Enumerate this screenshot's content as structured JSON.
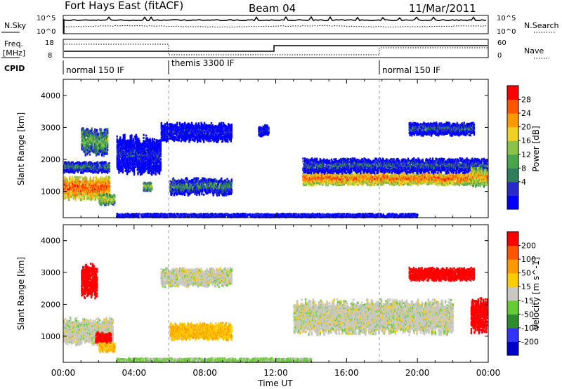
{
  "header": {
    "station": "Fort Hays East (fitACF)",
    "beam": "Beam 04",
    "date": "11/Mar/2011"
  },
  "panels": {
    "nsky": {
      "left_label": "N.Sky",
      "right_label": "N.Search",
      "left_ticks": [
        "10^5",
        "10^0"
      ],
      "right_ticks": [
        "10^5",
        "10^0"
      ]
    },
    "freq": {
      "left_label_1": "Freq.",
      "left_label_2": "[MHz]",
      "right_label": "Nave",
      "left_ticks": [
        "18",
        "8"
      ],
      "right_ticks": [
        "60",
        "0"
      ]
    },
    "cpid": {
      "label": "CPID",
      "segments": [
        "normal 150 IF",
        "themis 3300 IF",
        "normal 150 IF"
      ]
    }
  },
  "x_axis": {
    "label": "Time UT",
    "ticks": [
      "00:00",
      "04:00",
      "08:00",
      "12:00",
      "16:00",
      "20:00",
      "00:00"
    ]
  },
  "power_panel": {
    "ylabel": "Slant Range [km]",
    "yticks": [
      "4000",
      "3000",
      "2000",
      "1000"
    ],
    "colorbar_label": "Power [dB]",
    "colorbar_ticks": [
      "28",
      "24",
      "20",
      "16",
      "12",
      "8",
      "4"
    ]
  },
  "velocity_panel": {
    "ylabel": "Slant Range [km]",
    "yticks": [
      "4000",
      "3000",
      "2000",
      "1000"
    ],
    "colorbar_label": "Velocity [m s^-1]",
    "colorbar_ticks": [
      "200",
      "100",
      "50",
      "15",
      "-15",
      "-50",
      "-100",
      "-200"
    ]
  },
  "colors": {
    "power_scale": [
      "#0000ff",
      "#2a2acc",
      "#2e7d5b",
      "#4aa64a",
      "#8bc34a",
      "#f0d020",
      "#ff9900",
      "#ff5500",
      "#ff0000"
    ],
    "velocity_scale": [
      "#0000cc",
      "#3333ff",
      "#2e8b2e",
      "#66cc33",
      "#c8c8c0",
      "#ffcc00",
      "#ff9900",
      "#ff5500",
      "#ff0000"
    ]
  },
  "chart_data": [
    {
      "type": "heatmap",
      "title": "Power [dB]",
      "xlabel": "Time UT",
      "ylabel": "Slant Range [km]",
      "xlim": [
        0,
        24
      ],
      "ylim": [
        180,
        4500
      ],
      "colorbar_range": [
        0,
        30
      ],
      "echo_bands": [
        {
          "t_start": 0.0,
          "t_end": 2.6,
          "range_center_km": 1150,
          "range_width_km": 600,
          "power_db": 26
        },
        {
          "t_start": 0.0,
          "t_end": 2.6,
          "range_center_km": 1800,
          "range_width_km": 300,
          "power_db": 10
        },
        {
          "t_start": 1.0,
          "t_end": 2.5,
          "range_center_km": 2600,
          "range_width_km": 700,
          "power_db": 14
        },
        {
          "t_start": 2.0,
          "t_end": 2.9,
          "range_center_km": 800,
          "range_width_km": 300,
          "power_db": 18
        },
        {
          "t_start": 3.0,
          "t_end": 5.5,
          "range_center_km": 2200,
          "range_width_km": 1000,
          "power_db": 5
        },
        {
          "t_start": 4.5,
          "t_end": 5.0,
          "range_center_km": 1200,
          "range_width_km": 250,
          "power_db": 16
        },
        {
          "t_start": 6.0,
          "t_end": 9.5,
          "range_center_km": 1200,
          "range_width_km": 450,
          "power_db": 10
        },
        {
          "t_start": 5.5,
          "t_end": 9.5,
          "range_center_km": 2900,
          "range_width_km": 500,
          "power_db": 4
        },
        {
          "t_start": 11.0,
          "t_end": 11.6,
          "range_center_km": 2950,
          "range_width_km": 300,
          "power_db": 5
        },
        {
          "t_start": 13.5,
          "t_end": 24.0,
          "range_center_km": 1450,
          "range_width_km": 350,
          "power_db": 25
        },
        {
          "t_start": 13.5,
          "t_end": 24.0,
          "range_center_km": 1850,
          "range_width_km": 400,
          "power_db": 8
        },
        {
          "t_start": 19.5,
          "t_end": 23.2,
          "range_center_km": 3000,
          "range_width_km": 350,
          "power_db": 8
        },
        {
          "t_start": 23.0,
          "t_end": 24.0,
          "range_center_km": 1500,
          "range_width_km": 500,
          "power_db": 22
        },
        {
          "t_start": 3.0,
          "t_end": 20.0,
          "range_center_km": 300,
          "range_width_km": 120,
          "power_db": 6
        }
      ]
    },
    {
      "type": "heatmap",
      "title": "Velocity [m s^-1]",
      "xlabel": "Time UT",
      "ylabel": "Slant Range [km]",
      "xlim": [
        0,
        24
      ],
      "ylim": [
        180,
        4500
      ],
      "colorbar_range": [
        -200,
        200
      ],
      "echo_bands": [
        {
          "t_start": 0.0,
          "t_end": 2.8,
          "range_center_km": 1200,
          "range_width_km": 700,
          "velocity": 0
        },
        {
          "t_start": 1.0,
          "t_end": 1.9,
          "range_center_km": 2800,
          "range_width_km": 900,
          "velocity": 200
        },
        {
          "t_start": 1.8,
          "t_end": 2.7,
          "range_center_km": 1000,
          "range_width_km": 300,
          "velocity": 200
        },
        {
          "t_start": 2.0,
          "t_end": 2.9,
          "range_center_km": 700,
          "range_width_km": 250,
          "velocity": 60
        },
        {
          "t_start": 6.0,
          "t_end": 9.5,
          "range_center_km": 1200,
          "range_width_km": 450,
          "velocity": 60
        },
        {
          "t_start": 5.5,
          "t_end": 9.5,
          "range_center_km": 2900,
          "range_width_km": 500,
          "velocity": 0
        },
        {
          "t_start": 13.0,
          "t_end": 22.0,
          "range_center_km": 1650,
          "range_width_km": 900,
          "velocity": 0
        },
        {
          "t_start": 19.5,
          "t_end": 23.2,
          "range_center_km": 3000,
          "range_width_km": 350,
          "velocity": 200
        },
        {
          "t_start": 23.0,
          "t_end": 24.0,
          "range_center_km": 1700,
          "range_width_km": 900,
          "velocity": 200
        },
        {
          "t_start": 3.0,
          "t_end": 14.0,
          "range_center_km": 300,
          "range_width_km": 120,
          "velocity": -30
        }
      ]
    }
  ]
}
